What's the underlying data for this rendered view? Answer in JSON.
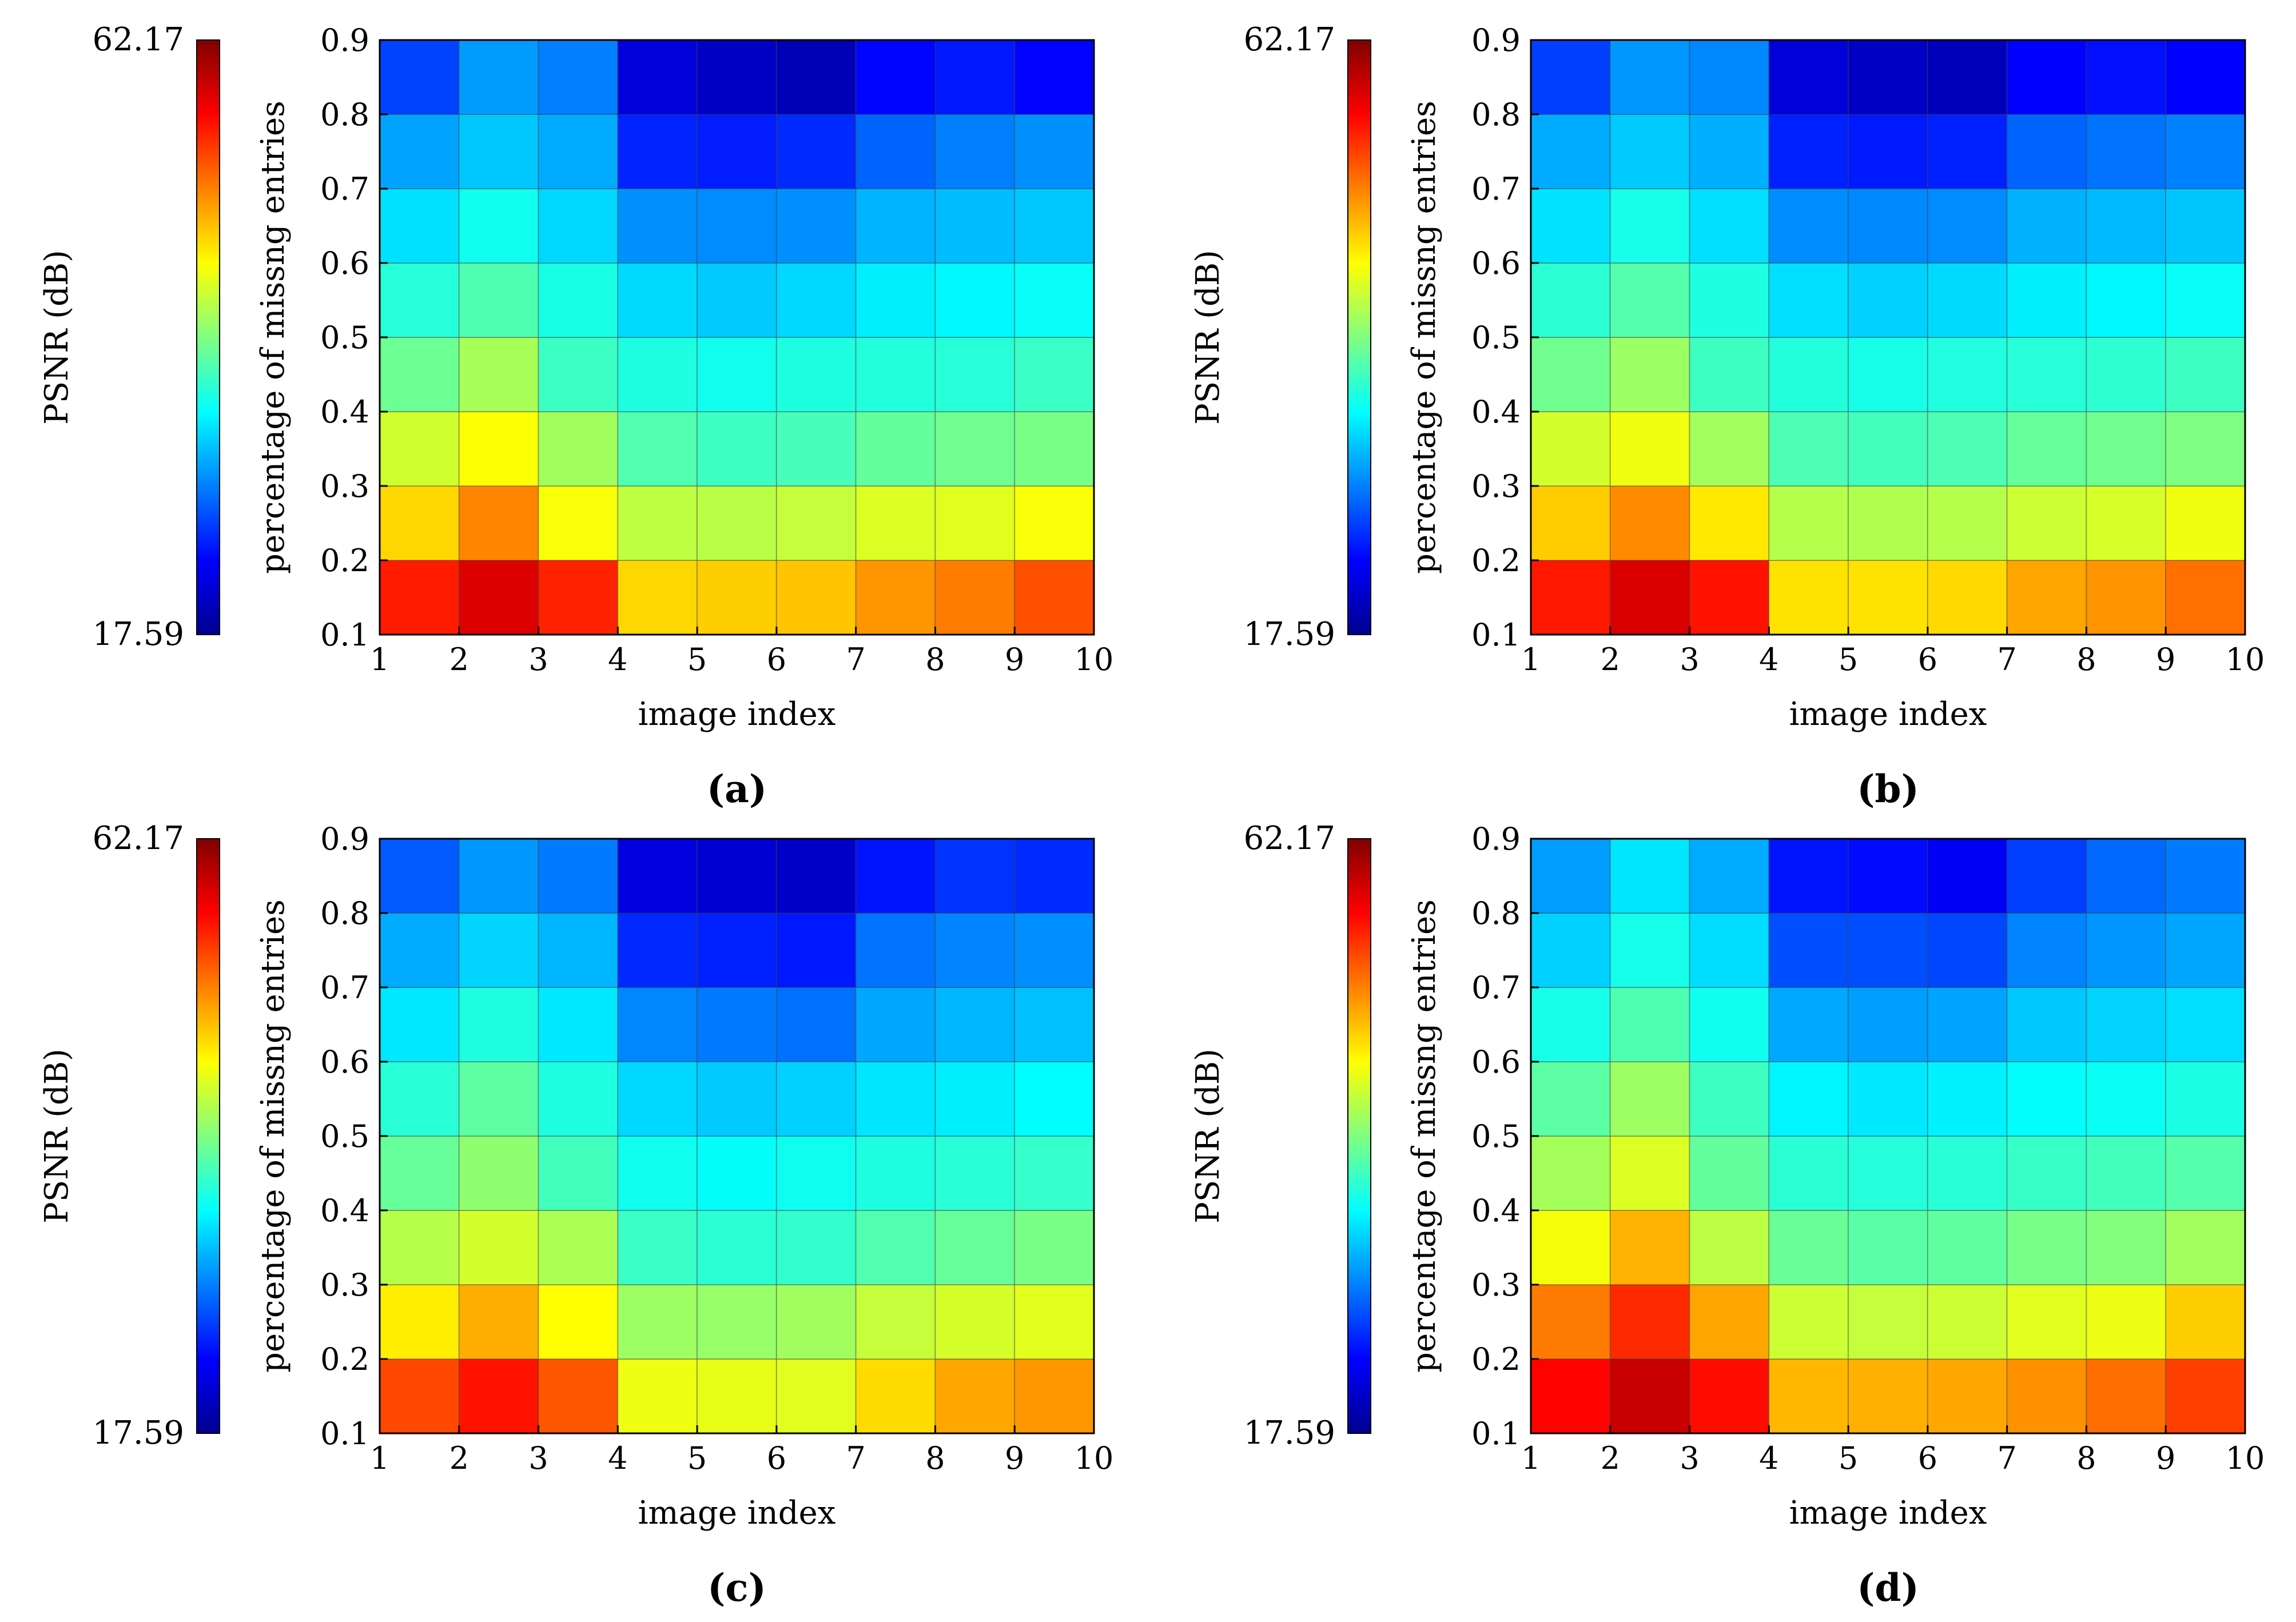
{
  "figure": {
    "panels_order": [
      "a",
      "b",
      "c",
      "d"
    ]
  },
  "colormap": {
    "name": "jet",
    "stops": [
      "#00008f",
      "#0000ff",
      "#0080ff",
      "#00ffff",
      "#80ff80",
      "#ffff00",
      "#ff8000",
      "#ff0000",
      "#800000"
    ]
  },
  "chart_data": [
    {
      "type": "heatmap",
      "panel_label": "(a)",
      "xlabel": "image index",
      "ylabel": "percentage of missng entries",
      "colorbar_label": "PSNR (dB)",
      "colorbar_max_label": "62.17",
      "colorbar_min_label": "17.59",
      "vmin": 17.59,
      "vmax": 62.17,
      "x_ticks": [
        "1",
        "2",
        "3",
        "4",
        "5",
        "6",
        "7",
        "8",
        "9",
        "10"
      ],
      "y_ticks": [
        "0.1",
        "0.2",
        "0.3",
        "0.4",
        "0.5",
        "0.6",
        "0.7",
        "0.8",
        "0.9"
      ],
      "xlim": [
        1,
        10
      ],
      "ylim": [
        0.1,
        0.9
      ],
      "rows_y": [
        0.15,
        0.25,
        0.35,
        0.45,
        0.55,
        0.65,
        0.75,
        0.85
      ],
      "cols_x": [
        1.5,
        2.5,
        3.5,
        4.5,
        5.5,
        6.5,
        7.5,
        8.5,
        9.5
      ],
      "values": [
        [
          55.4,
          58.1,
          55.1,
          47.2,
          47.6,
          48.0,
          50.1,
          51.2,
          53.1
        ],
        [
          47.2,
          50.8,
          45.2,
          42.6,
          42.4,
          42.9,
          43.9,
          44.1,
          45.2
        ],
        [
          43.4,
          45.3,
          41.3,
          37.8,
          37.0,
          37.4,
          38.6,
          39.2,
          39.6
        ],
        [
          39.0,
          41.6,
          36.9,
          35.6,
          35.1,
          35.6,
          35.8,
          36.0,
          36.8
        ],
        [
          36.0,
          37.7,
          35.4,
          32.7,
          32.0,
          32.6,
          33.6,
          34.0,
          34.6
        ],
        [
          33.0,
          35.0,
          32.6,
          29.5,
          29.2,
          29.4,
          31.0,
          31.4,
          31.9
        ],
        [
          30.3,
          31.9,
          30.6,
          24.7,
          24.4,
          25.0,
          27.5,
          28.7,
          29.5
        ],
        [
          26.1,
          29.9,
          28.7,
          21.3,
          20.3,
          19.6,
          23.3,
          24.2,
          23.2
        ]
      ]
    },
    {
      "type": "heatmap",
      "panel_label": "(b)",
      "xlabel": "image index",
      "ylabel": "percentage of missng entries",
      "colorbar_label": "PSNR (dB)",
      "colorbar_max_label": "62.17",
      "colorbar_min_label": "17.59",
      "vmin": 17.59,
      "vmax": 62.17,
      "x_ticks": [
        "1",
        "2",
        "3",
        "4",
        "5",
        "6",
        "7",
        "8",
        "9",
        "10"
      ],
      "y_ticks": [
        "0.1",
        "0.2",
        "0.3",
        "0.4",
        "0.5",
        "0.6",
        "0.7",
        "0.8",
        "0.9"
      ],
      "xlim": [
        1,
        10
      ],
      "ylim": [
        0.1,
        0.9
      ],
      "rows_y": [
        0.15,
        0.25,
        0.35,
        0.45,
        0.55,
        0.65,
        0.75,
        0.85
      ],
      "cols_x": [
        1.5,
        2.5,
        3.5,
        4.5,
        5.5,
        6.5,
        7.5,
        8.5,
        9.5
      ],
      "values": [
        [
          55.6,
          58.2,
          55.8,
          46.7,
          46.7,
          47.1,
          49.4,
          50.2,
          51.7
        ],
        [
          47.7,
          50.6,
          46.4,
          42.2,
          42.0,
          42.2,
          43.2,
          43.7,
          44.8
        ],
        [
          43.5,
          44.8,
          41.4,
          37.6,
          37.2,
          37.6,
          38.7,
          39.2,
          39.8
        ],
        [
          39.2,
          41.1,
          37.0,
          35.8,
          35.3,
          35.7,
          36.0,
          36.3,
          37.0
        ],
        [
          36.2,
          38.0,
          35.6,
          32.9,
          32.3,
          32.7,
          33.6,
          34.0,
          34.6
        ],
        [
          33.1,
          35.3,
          32.9,
          29.3,
          29.1,
          29.2,
          30.9,
          31.3,
          31.8
        ],
        [
          30.6,
          32.0,
          30.8,
          24.6,
          24.3,
          24.6,
          27.5,
          28.2,
          28.8
        ],
        [
          25.9,
          29.8,
          29.1,
          21.2,
          20.3,
          19.8,
          23.1,
          23.8,
          23.1
        ]
      ]
    },
    {
      "type": "heatmap",
      "panel_label": "(c)",
      "xlabel": "image index",
      "ylabel": "percentage of missng entries",
      "colorbar_label": "PSNR (dB)",
      "colorbar_max_label": "62.17",
      "colorbar_min_label": "17.59",
      "vmin": 17.59,
      "vmax": 62.17,
      "x_ticks": [
        "1",
        "2",
        "3",
        "4",
        "5",
        "6",
        "7",
        "8",
        "9",
        "10"
      ],
      "y_ticks": [
        "0.1",
        "0.2",
        "0.3",
        "0.4",
        "0.5",
        "0.6",
        "0.7",
        "0.8",
        "0.9"
      ],
      "xlim": [
        1,
        10
      ],
      "ylim": [
        0.1,
        0.9
      ],
      "rows_y": [
        0.15,
        0.25,
        0.35,
        0.45,
        0.55,
        0.65,
        0.75,
        0.85
      ],
      "cols_x": [
        1.5,
        2.5,
        3.5,
        4.5,
        5.5,
        6.5,
        7.5,
        8.5,
        9.5
      ],
      "values": [
        [
          53.4,
          55.8,
          52.8,
          44.7,
          44.4,
          44.1,
          47.0,
          49.3,
          50.0
        ],
        [
          46.2,
          49.0,
          45.5,
          41.2,
          40.9,
          41.3,
          42.9,
          43.6,
          44.2
        ],
        [
          42.2,
          43.5,
          41.8,
          36.8,
          36.2,
          36.5,
          37.8,
          38.8,
          39.6
        ],
        [
          38.8,
          40.6,
          37.2,
          35.0,
          34.5,
          34.9,
          35.6,
          36.1,
          36.6
        ],
        [
          36.1,
          38.4,
          35.6,
          32.6,
          32.0,
          32.3,
          33.2,
          33.6,
          34.3
        ],
        [
          33.3,
          35.6,
          33.4,
          29.0,
          28.5,
          28.1,
          30.4,
          31.1,
          31.6
        ],
        [
          30.6,
          32.4,
          31.1,
          24.9,
          24.6,
          24.2,
          28.2,
          28.9,
          29.4
        ],
        [
          27.1,
          29.8,
          28.5,
          21.6,
          20.9,
          20.5,
          24.0,
          25.4,
          25.0
        ]
      ]
    },
    {
      "type": "heatmap",
      "panel_label": "(d)",
      "xlabel": "image index",
      "ylabel": "percentage of missng entries",
      "colorbar_label": "PSNR (dB)",
      "colorbar_max_label": "62.17",
      "colorbar_min_label": "17.59",
      "vmin": 17.59,
      "vmax": 62.17,
      "x_ticks": [
        "1",
        "2",
        "3",
        "4",
        "5",
        "6",
        "7",
        "8",
        "9",
        "10"
      ],
      "y_ticks": [
        "0.1",
        "0.2",
        "0.3",
        "0.4",
        "0.5",
        "0.6",
        "0.7",
        "0.8",
        "0.9"
      ],
      "xlim": [
        1,
        10
      ],
      "ylim": [
        0.1,
        0.9
      ],
      "rows_y": [
        0.15,
        0.25,
        0.35,
        0.45,
        0.55,
        0.65,
        0.75,
        0.85
      ],
      "cols_x": [
        1.5,
        2.5,
        3.5,
        4.5,
        5.5,
        6.5,
        7.5,
        8.5,
        9.5
      ],
      "values": [
        [
          56.5,
          59.0,
          56.1,
          48.6,
          48.9,
          49.3,
          50.3,
          51.8,
          53.8
        ],
        [
          51.3,
          54.8,
          49.4,
          43.2,
          42.9,
          43.2,
          44.1,
          44.6,
          47.6
        ],
        [
          45.0,
          48.8,
          42.5,
          38.9,
          38.2,
          38.5,
          39.5,
          40.0,
          41.4
        ],
        [
          41.5,
          43.9,
          38.6,
          36.2,
          35.9,
          36.1,
          36.7,
          37.2,
          38.0
        ],
        [
          38.3,
          41.2,
          37.0,
          33.9,
          33.4,
          33.7,
          34.4,
          34.7,
          35.5
        ],
        [
          35.3,
          37.7,
          35.0,
          30.5,
          30.1,
          30.3,
          31.9,
          32.4,
          32.9
        ],
        [
          32.3,
          35.2,
          32.8,
          26.6,
          26.6,
          26.2,
          28.9,
          29.7,
          30.4
        ],
        [
          30.0,
          33.2,
          30.6,
          24.0,
          23.6,
          22.6,
          25.9,
          27.7,
          28.5
        ]
      ]
    }
  ]
}
